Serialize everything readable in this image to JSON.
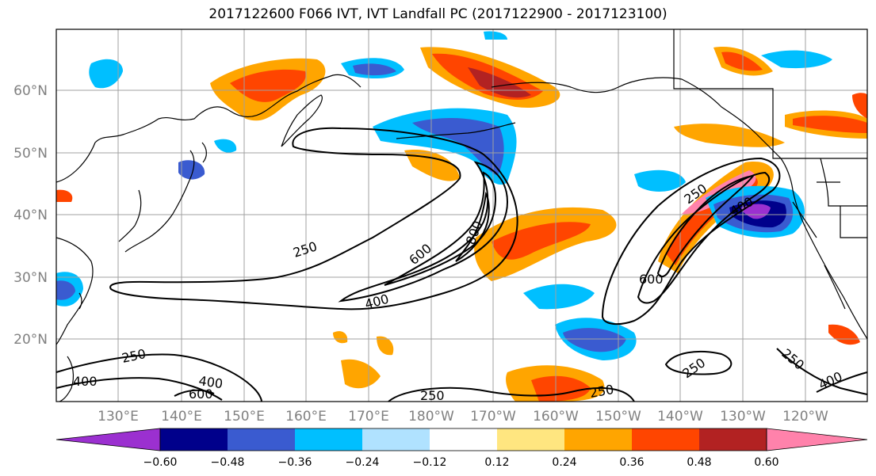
{
  "title": "2017122600 F066 IVT, IVT Landfall PC (2017122900 - 2017123100)",
  "map": {
    "lat_labels": [
      "60°N",
      "50°N",
      "40°N",
      "30°N",
      "20°N"
    ],
    "lon_labels": [
      "130°E",
      "140°E",
      "150°E",
      "160°E",
      "170°E",
      "180°W",
      "170°W",
      "160°W",
      "150°W",
      "140°W",
      "130°W",
      "120°W"
    ],
    "contour_labels": [
      "250",
      "400",
      "600",
      "800",
      "250",
      "400",
      "600",
      "250",
      "400",
      "600",
      "250",
      "250",
      "250",
      "250",
      "400"
    ],
    "colors": {
      "land_outline": "#000000",
      "grid": "#a0a0a0",
      "contour": "#000000"
    }
  },
  "colorbar": {
    "ticks": [
      "−0.60",
      "−0.48",
      "−0.36",
      "−0.24",
      "−0.12",
      "0.12",
      "0.24",
      "0.36",
      "0.48",
      "0.60"
    ],
    "colors": [
      "#9b30d0",
      "#00008b",
      "#3a5bd0",
      "#00bfff",
      "#b0e2ff",
      "#ffffff",
      "#ffe680",
      "#ffa500",
      "#ff4500",
      "#b22222",
      "#ff82ab"
    ]
  }
}
